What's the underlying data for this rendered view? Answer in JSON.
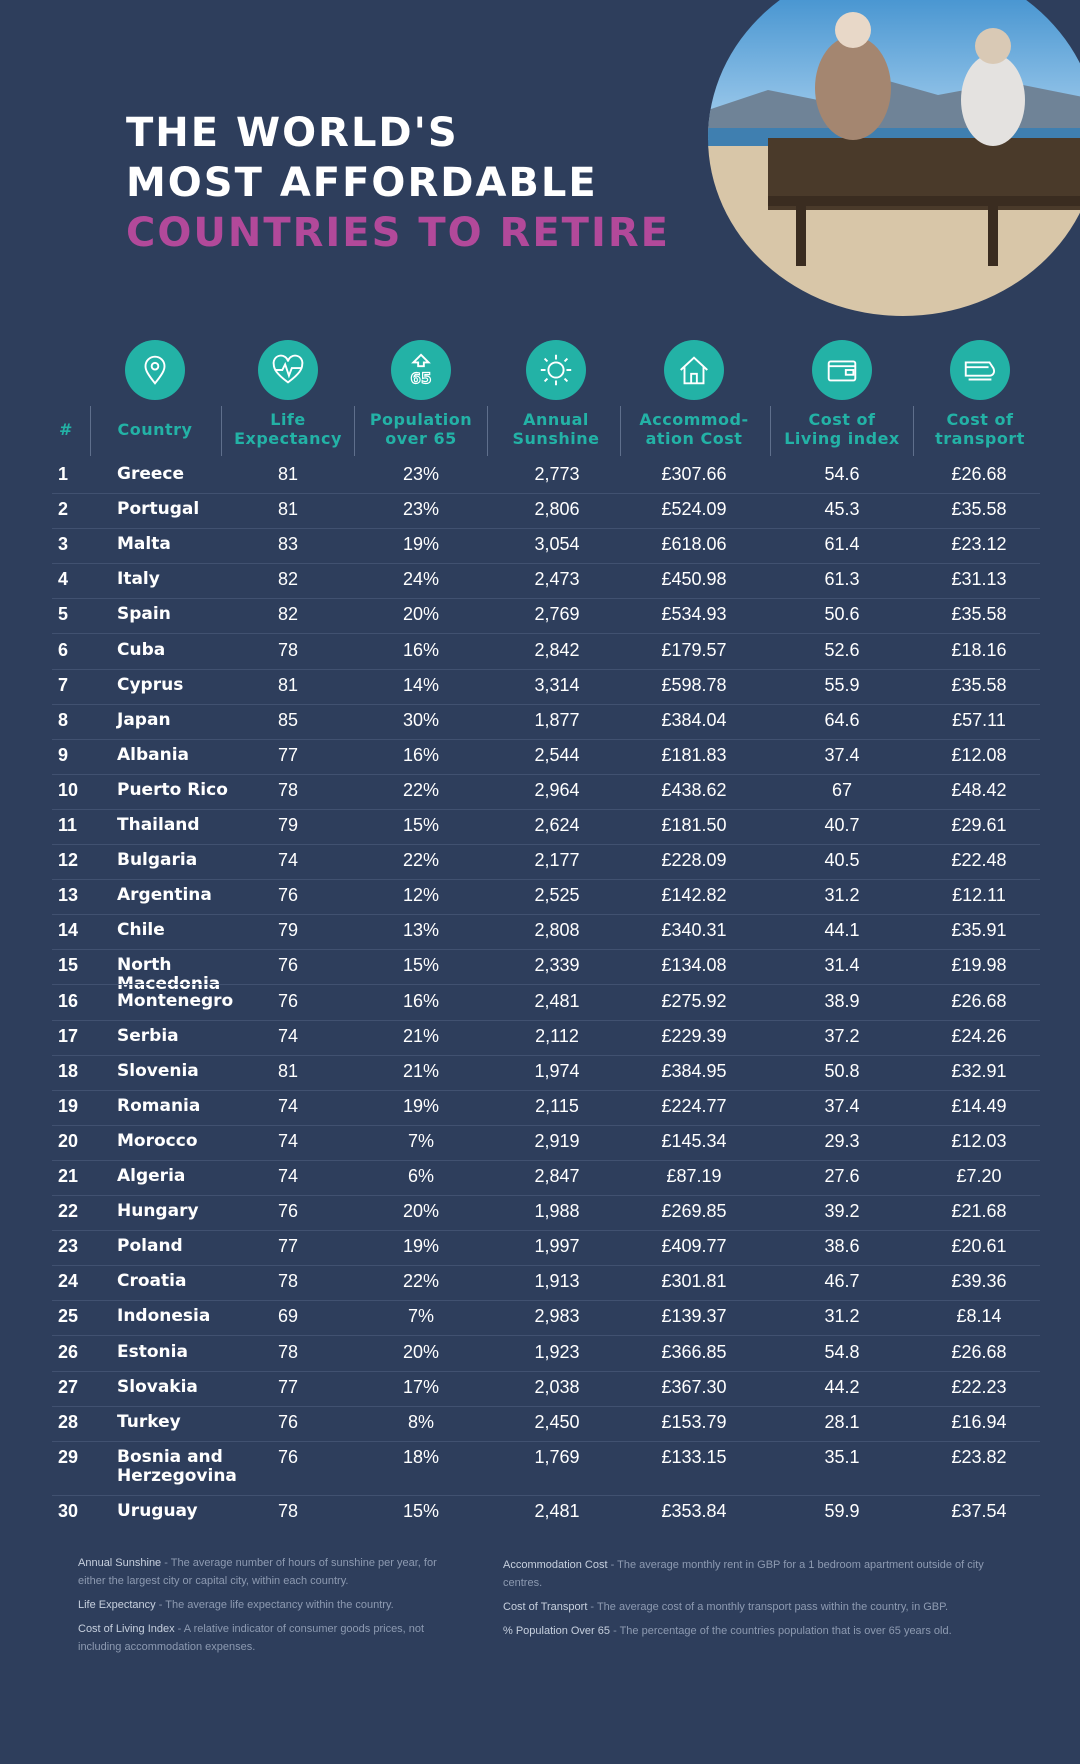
{
  "title": {
    "line1": "THE WORLD'S",
    "line2": "MOST AFFORDABLE",
    "line3": "COUNTRIES TO RETIRE"
  },
  "colors": {
    "background": "#2e3e5c",
    "accent_teal": "#23b2a6",
    "accent_pink": "#b2499a"
  },
  "icons": [
    "location-pin-icon",
    "heart-pulse-icon",
    "65-arrow-icon",
    "sun-icon",
    "house-icon",
    "wallet-icon",
    "train-icon"
  ],
  "columns": [
    {
      "key": "rank",
      "label": "#"
    },
    {
      "key": "country",
      "label": "Country"
    },
    {
      "key": "life",
      "label_line1": "Life",
      "label_line2": "Expectancy"
    },
    {
      "key": "pop65",
      "label_line1": "Population",
      "label_line2": "over 65"
    },
    {
      "key": "sunshine",
      "label_line1": "Annual",
      "label_line2": "Sunshine"
    },
    {
      "key": "accom",
      "label_line1": "Accommod-",
      "label_line2": "ation Cost"
    },
    {
      "key": "col",
      "label_line1": "Cost of",
      "label_line2": "Living index"
    },
    {
      "key": "transport",
      "label_line1": "Cost of",
      "label_line2": "transport"
    }
  ],
  "rows": [
    [
      "1",
      "Greece",
      "81",
      "23%",
      "2,773",
      "£307.66",
      "54.6",
      "£26.68"
    ],
    [
      "2",
      "Portugal",
      "81",
      "23%",
      "2,806",
      "£524.09",
      "45.3",
      "£35.58"
    ],
    [
      "3",
      "Malta",
      "83",
      "19%",
      "3,054",
      "£618.06",
      "61.4",
      "£23.12"
    ],
    [
      "4",
      "Italy",
      "82",
      "24%",
      "2,473",
      "£450.98",
      "61.3",
      "£31.13"
    ],
    [
      "5",
      "Spain",
      "82",
      "20%",
      "2,769",
      "£534.93",
      "50.6",
      "£35.58"
    ],
    [
      "6",
      "Cuba",
      "78",
      "16%",
      "2,842",
      "£179.57",
      "52.6",
      "£18.16"
    ],
    [
      "7",
      "Cyprus",
      "81",
      "14%",
      "3,314",
      "£598.78",
      "55.9",
      "£35.58"
    ],
    [
      "8",
      "Japan",
      "85",
      "30%",
      "1,877",
      "£384.04",
      "64.6",
      "£57.11"
    ],
    [
      "9",
      "Albania",
      "77",
      "16%",
      "2,544",
      "£181.83",
      "37.4",
      "£12.08"
    ],
    [
      "10",
      "Puerto Rico",
      "78",
      "22%",
      "2,964",
      "£438.62",
      "67",
      "£48.42"
    ],
    [
      "11",
      "Thailand",
      "79",
      "15%",
      "2,624",
      "£181.50",
      "40.7",
      "£29.61"
    ],
    [
      "12",
      "Bulgaria",
      "74",
      "22%",
      "2,177",
      "£228.09",
      "40.5",
      "£22.48"
    ],
    [
      "13",
      "Argentina",
      "76",
      "12%",
      "2,525",
      "£142.82",
      "31.2",
      "£12.11"
    ],
    [
      "14",
      "Chile",
      "79",
      "13%",
      "2,808",
      "£340.31",
      "44.1",
      "£35.91"
    ],
    [
      "15",
      "North Macedonia",
      "76",
      "15%",
      "2,339",
      "£134.08",
      "31.4",
      "£19.98"
    ],
    [
      "16",
      "Montenegro",
      "76",
      "16%",
      "2,481",
      "£275.92",
      "38.9",
      "£26.68"
    ],
    [
      "17",
      "Serbia",
      "74",
      "21%",
      "2,112",
      "£229.39",
      "37.2",
      "£24.26"
    ],
    [
      "18",
      "Slovenia",
      "81",
      "21%",
      "1,974",
      "£384.95",
      "50.8",
      "£32.91"
    ],
    [
      "19",
      "Romania",
      "74",
      "19%",
      "2,115",
      "£224.77",
      "37.4",
      "£14.49"
    ],
    [
      "20",
      "Morocco",
      "74",
      "7%",
      "2,919",
      "£145.34",
      "29.3",
      "£12.03"
    ],
    [
      "21",
      "Algeria",
      "74",
      "6%",
      "2,847",
      "£87.19",
      "27.6",
      "£7.20"
    ],
    [
      "22",
      "Hungary",
      "76",
      "20%",
      "1,988",
      "£269.85",
      "39.2",
      "£21.68"
    ],
    [
      "23",
      "Poland",
      "77",
      "19%",
      "1,997",
      "£409.77",
      "38.6",
      "£20.61"
    ],
    [
      "24",
      "Croatia",
      "78",
      "22%",
      "1,913",
      "£301.81",
      "46.7",
      "£39.36"
    ],
    [
      "25",
      "Indonesia",
      "69",
      "7%",
      "2,983",
      "£139.37",
      "31.2",
      "£8.14"
    ],
    [
      "26",
      "Estonia",
      "78",
      "20%",
      "1,923",
      "£366.85",
      "54.8",
      "£26.68"
    ],
    [
      "27",
      "Slovakia",
      "77",
      "17%",
      "2,038",
      "£367.30",
      "44.2",
      "£22.23"
    ],
    [
      "28",
      "Turkey",
      "76",
      "8%",
      "2,450",
      "£153.79",
      "28.1",
      "£16.94"
    ],
    [
      "29",
      "Bosnia and Herzegovina",
      "76",
      "18%",
      "1,769",
      "£133.15",
      "35.1",
      "£23.82"
    ],
    [
      "30",
      "Uruguay",
      "78",
      "15%",
      "2,481",
      "£353.84",
      "59.9",
      "£37.54"
    ]
  ],
  "notes_left": [
    {
      "term": "Annual Sunshine",
      "text": " - The average number of hours of sunshine per year, for either the largest city or capital city, within each country."
    },
    {
      "term": "Life Expectancy",
      "text": " - The average life expectancy within the country."
    },
    {
      "term": "Cost of Living Index",
      "text": " - A relative indicator of consumer goods prices, not including accommodation expenses."
    }
  ],
  "notes_right": [
    {
      "term": "Accommodation Cost",
      "text": " - The average monthly rent in GBP for a 1 bedroom apartment outside of city centres."
    },
    {
      "term": "Cost of Transport",
      "text": " - The average cost of a monthly transport pass within the country, in GBP."
    },
    {
      "term": "% Population Over 65",
      "text": " - The percentage of the countries population that is over 65 years old."
    }
  ]
}
